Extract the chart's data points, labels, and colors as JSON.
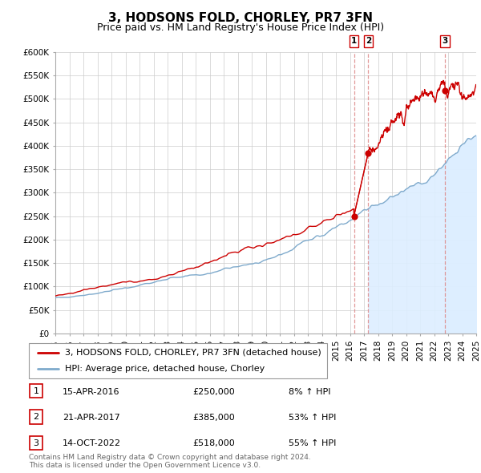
{
  "title": "3, HODSONS FOLD, CHORLEY, PR7 3FN",
  "subtitle": "Price paid vs. HM Land Registry's House Price Index (HPI)",
  "xlim": [
    1995,
    2025
  ],
  "ylim": [
    0,
    600000
  ],
  "yticks": [
    0,
    50000,
    100000,
    150000,
    200000,
    250000,
    300000,
    350000,
    400000,
    450000,
    500000,
    550000,
    600000
  ],
  "ytick_labels": [
    "£0",
    "£50K",
    "£100K",
    "£150K",
    "£200K",
    "£250K",
    "£300K",
    "£350K",
    "£400K",
    "£450K",
    "£500K",
    "£550K",
    "£600K"
  ],
  "xticks": [
    1995,
    1996,
    1997,
    1998,
    1999,
    2000,
    2001,
    2002,
    2003,
    2004,
    2005,
    2006,
    2007,
    2008,
    2009,
    2010,
    2011,
    2012,
    2013,
    2014,
    2015,
    2016,
    2017,
    2018,
    2019,
    2020,
    2021,
    2022,
    2023,
    2024,
    2025
  ],
  "sale_color": "#cc0000",
  "hpi_color": "#7faacc",
  "hpi_fill_color": "#ddeeff",
  "background_color": "#ffffff",
  "grid_color": "#cccccc",
  "vline_color": "#dd8888",
  "transactions": [
    {
      "num": 1,
      "date": "15-APR-2016",
      "x": 2016.29,
      "price": 250000,
      "pct": "8%",
      "dir": "↑"
    },
    {
      "num": 2,
      "date": "21-APR-2017",
      "x": 2017.31,
      "price": 385000,
      "pct": "53%",
      "dir": "↑"
    },
    {
      "num": 3,
      "date": "14-OCT-2022",
      "x": 2022.79,
      "price": 518000,
      "pct": "55%",
      "dir": "↑"
    }
  ],
  "legend_label_red": "3, HODSONS FOLD, CHORLEY, PR7 3FN (detached house)",
  "legend_label_blue": "HPI: Average price, detached house, Chorley",
  "footer": "Contains HM Land Registry data © Crown copyright and database right 2024.\nThis data is licensed under the Open Government Licence v3.0.",
  "title_fontsize": 11,
  "subtitle_fontsize": 9,
  "tick_fontsize": 7.5,
  "legend_fontsize": 8,
  "footer_fontsize": 6.5
}
